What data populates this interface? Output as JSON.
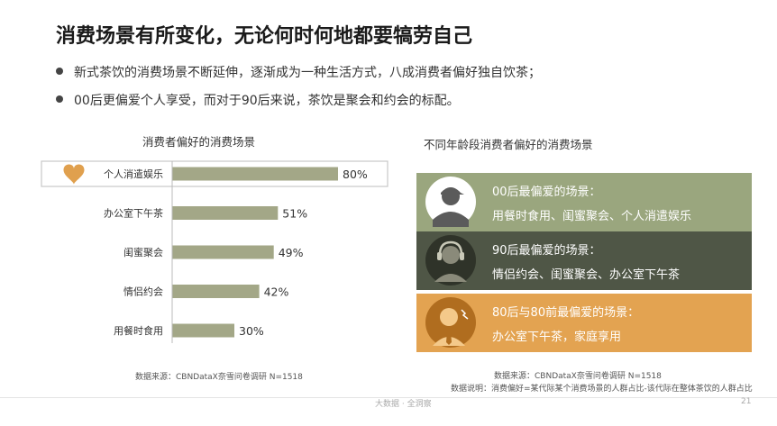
{
  "title": "消费场景有所变化，无论何时何地都要犒劳自己",
  "bullets": [
    "新式茶饮的消费场景不断延伸，逐渐成为一种生活方式，八成消费者偏好独自饮茶；",
    "00后更偏爱个人享受，而对于90后来说，茶饮是聚会和约会的标配。"
  ],
  "chart_data": {
    "type": "bar",
    "orientation": "horizontal",
    "title": "消费者偏好的消费场景",
    "categories": [
      "个人消遣娱乐",
      "办公室下午茶",
      "闺蜜聚会",
      "情侣约会",
      "用餐时食用"
    ],
    "values": [
      80,
      51,
      49,
      42,
      30
    ],
    "value_labels": [
      "80%",
      "51%",
      "49%",
      "42%",
      "30%"
    ],
    "unit": "%",
    "xlim": [
      0,
      100
    ],
    "highlight_index": 0,
    "bar_color": "#a3a787"
  },
  "right_title": "不同年龄段消费者偏好的消费场景",
  "panels": [
    {
      "heading": "00后最偏爱的场景：",
      "detail": "用餐时食用、闺蜜聚会、个人消遣娱乐",
      "color": "#9aa67e"
    },
    {
      "heading": "90后最偏爱的场景：",
      "detail": "情侣约会、闺蜜聚会、办公室下午茶",
      "color": "#4f5646"
    },
    {
      "heading": "80后与80前最偏爱的场景：",
      "detail": "办公室下午茶，家庭享用",
      "color": "#e3a351"
    }
  ],
  "source_left": "数据来源：CBNDataX奈雪问卷调研 N=1518",
  "source_right": "数据来源：CBNDataX奈雪问卷调研 N=1518",
  "note_right": "数据说明：消费偏好=某代际某个消费场景的人群占比-该代际在整体茶饮的人群占比",
  "footer": "大数据 · 全洞察",
  "page_number": "21",
  "icons": {
    "highlight": "heart-icon",
    "avatar_00": "person-cap-icon",
    "avatar_90": "person-headphones-icon",
    "avatar_80": "person-tie-icon"
  }
}
